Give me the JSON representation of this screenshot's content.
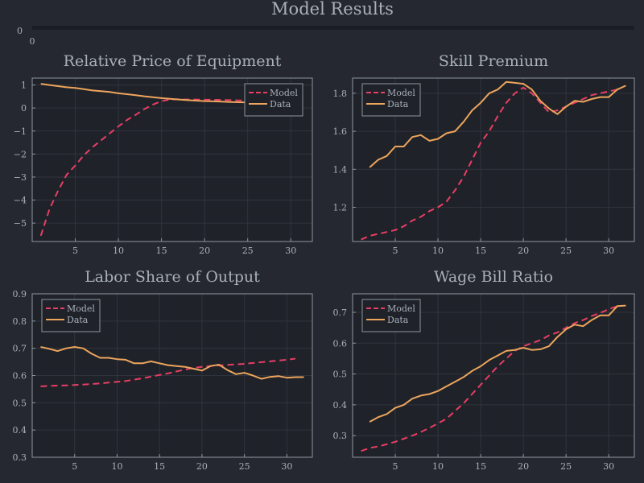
{
  "figure_title": "Model Results",
  "colors": {
    "background": "#252830",
    "plot_background": "#1f2229",
    "frame": "#8e959f",
    "grid": "#30343d",
    "text": "#a9b0ba",
    "model": "#e83e63",
    "data": "#eda55c"
  },
  "header_panel": {
    "ytick": "0",
    "xtick": "0"
  },
  "chart_data": [
    {
      "type": "line",
      "title": "Relative Price of Equipment",
      "xlabel": "",
      "ylabel": "",
      "xlim": [
        0,
        32.5
      ],
      "ylim": [
        -5.8,
        1.3
      ],
      "xticks": [
        5,
        10,
        15,
        20,
        25,
        30
      ],
      "yticks": [
        -5,
        -4,
        -3,
        -2,
        -1,
        0,
        1
      ],
      "legend_position": "top-right",
      "series": [
        {
          "name": "Model",
          "style": "dashed",
          "x": [
            1,
            2,
            3,
            4,
            5,
            6,
            7,
            8,
            9,
            10,
            11,
            12,
            13,
            14,
            15,
            16,
            17,
            18,
            19,
            20,
            21,
            22,
            23,
            24,
            25,
            26,
            27,
            28,
            29,
            30,
            31
          ],
          "values": [
            -5.55,
            -4.4,
            -3.6,
            -2.9,
            -2.5,
            -2.05,
            -1.7,
            -1.4,
            -1.1,
            -0.8,
            -0.52,
            -0.3,
            -0.05,
            0.15,
            0.3,
            0.37,
            0.38,
            0.37,
            0.37,
            0.36,
            0.36,
            0.35,
            0.34,
            0.33,
            0.33,
            0.32,
            0.31,
            0.3,
            0.3,
            0.29,
            0.28
          ]
        },
        {
          "name": "Data",
          "style": "solid",
          "x": [
            1,
            2,
            3,
            4,
            5,
            6,
            7,
            8,
            9,
            10,
            11,
            12,
            13,
            14,
            15,
            16,
            17,
            18,
            19,
            20,
            21,
            22,
            23,
            24,
            25,
            26,
            27,
            28,
            29,
            30,
            31
          ],
          "values": [
            1.05,
            1.0,
            0.95,
            0.9,
            0.87,
            0.82,
            0.76,
            0.73,
            0.7,
            0.64,
            0.6,
            0.56,
            0.51,
            0.47,
            0.43,
            0.4,
            0.37,
            0.34,
            0.32,
            0.3,
            0.29,
            0.28,
            0.26,
            0.25,
            0.24,
            0.23,
            0.22,
            0.21,
            0.2,
            0.19,
            0.18
          ]
        }
      ]
    },
    {
      "type": "line",
      "title": "Skill Premium",
      "xlabel": "",
      "ylabel": "",
      "xlim": [
        0,
        33
      ],
      "ylim": [
        1.02,
        1.88
      ],
      "xticks": [
        5,
        10,
        15,
        20,
        25,
        30
      ],
      "yticks": [
        1.2,
        1.4,
        1.6,
        1.8
      ],
      "legend_position": "top-left",
      "series": [
        {
          "name": "Model",
          "style": "dashed",
          "x": [
            1,
            2,
            3,
            4,
            5,
            6,
            7,
            8,
            9,
            10,
            11,
            12,
            13,
            14,
            15,
            16,
            17,
            18,
            19,
            20,
            21,
            22,
            23,
            24,
            25,
            26,
            27,
            28,
            29,
            30,
            31
          ],
          "values": [
            1.03,
            1.05,
            1.06,
            1.07,
            1.08,
            1.1,
            1.13,
            1.15,
            1.18,
            1.2,
            1.23,
            1.29,
            1.36,
            1.45,
            1.54,
            1.6,
            1.68,
            1.75,
            1.8,
            1.83,
            1.8,
            1.75,
            1.7,
            1.71,
            1.73,
            1.75,
            1.77,
            1.79,
            1.8,
            1.81,
            1.82
          ]
        },
        {
          "name": "Data",
          "style": "solid",
          "x": [
            2,
            3,
            4,
            5,
            6,
            7,
            8,
            9,
            10,
            11,
            12,
            13,
            14,
            15,
            16,
            17,
            18,
            19,
            20,
            21,
            22,
            23,
            24,
            25,
            26,
            27,
            28,
            29,
            30,
            31,
            32
          ],
          "values": [
            1.41,
            1.45,
            1.47,
            1.52,
            1.52,
            1.57,
            1.58,
            1.55,
            1.56,
            1.59,
            1.6,
            1.65,
            1.71,
            1.75,
            1.8,
            1.82,
            1.86,
            1.855,
            1.85,
            1.82,
            1.76,
            1.72,
            1.69,
            1.73,
            1.76,
            1.755,
            1.77,
            1.78,
            1.78,
            1.82,
            1.84
          ]
        }
      ]
    },
    {
      "type": "line",
      "title": "Labor Share of Output",
      "xlabel": "",
      "ylabel": "",
      "xlim": [
        0,
        33
      ],
      "ylim": [
        0.3,
        0.9
      ],
      "xticks": [
        5,
        10,
        15,
        20,
        25,
        30
      ],
      "yticks": [
        0.3,
        0.4,
        0.5,
        0.6,
        0.7,
        0.8,
        0.9
      ],
      "legend_position": "top-left",
      "series": [
        {
          "name": "Model",
          "style": "dashed",
          "x": [
            1,
            2,
            3,
            4,
            5,
            6,
            7,
            8,
            9,
            10,
            11,
            12,
            13,
            14,
            15,
            16,
            17,
            18,
            19,
            20,
            21,
            22,
            23,
            24,
            25,
            26,
            27,
            28,
            29,
            30,
            31
          ],
          "values": [
            0.56,
            0.562,
            0.563,
            0.564,
            0.565,
            0.567,
            0.569,
            0.571,
            0.574,
            0.577,
            0.58,
            0.585,
            0.59,
            0.596,
            0.602,
            0.608,
            0.615,
            0.622,
            0.628,
            0.632,
            0.635,
            0.637,
            0.639,
            0.641,
            0.643,
            0.646,
            0.649,
            0.652,
            0.655,
            0.658,
            0.662
          ]
        },
        {
          "name": "Data",
          "style": "solid",
          "x": [
            1,
            2,
            3,
            4,
            5,
            6,
            7,
            8,
            9,
            10,
            11,
            12,
            13,
            14,
            15,
            16,
            17,
            18,
            19,
            20,
            21,
            22,
            23,
            24,
            25,
            26,
            27,
            28,
            29,
            30,
            31,
            32
          ],
          "values": [
            0.705,
            0.698,
            0.69,
            0.7,
            0.705,
            0.7,
            0.68,
            0.665,
            0.665,
            0.66,
            0.658,
            0.645,
            0.645,
            0.652,
            0.645,
            0.638,
            0.635,
            0.632,
            0.625,
            0.618,
            0.635,
            0.64,
            0.62,
            0.605,
            0.61,
            0.6,
            0.588,
            0.595,
            0.598,
            0.592,
            0.594,
            0.594
          ]
        }
      ]
    },
    {
      "type": "line",
      "title": "Wage Bill Ratio",
      "xlabel": "",
      "ylabel": "",
      "xlim": [
        0,
        33
      ],
      "ylim": [
        0.23,
        0.76
      ],
      "xticks": [
        5,
        10,
        15,
        20,
        25,
        30
      ],
      "yticks": [
        0.3,
        0.4,
        0.5,
        0.6,
        0.7
      ],
      "legend_position": "top-left",
      "series": [
        {
          "name": "Model",
          "style": "dashed",
          "x": [
            1,
            2,
            3,
            4,
            5,
            6,
            7,
            8,
            9,
            10,
            11,
            12,
            13,
            14,
            15,
            16,
            17,
            18,
            19,
            20,
            21,
            22,
            23,
            24,
            25,
            26,
            27,
            28,
            29,
            30,
            31
          ],
          "values": [
            0.25,
            0.26,
            0.265,
            0.272,
            0.28,
            0.29,
            0.3,
            0.312,
            0.325,
            0.34,
            0.355,
            0.38,
            0.405,
            0.435,
            0.465,
            0.495,
            0.525,
            0.55,
            0.575,
            0.59,
            0.6,
            0.61,
            0.625,
            0.635,
            0.65,
            0.665,
            0.675,
            0.688,
            0.698,
            0.71,
            0.72
          ]
        },
        {
          "name": "Data",
          "style": "solid",
          "x": [
            2,
            3,
            4,
            5,
            6,
            7,
            8,
            9,
            10,
            11,
            12,
            13,
            14,
            15,
            16,
            17,
            18,
            19,
            20,
            21,
            22,
            23,
            24,
            25,
            26,
            27,
            28,
            29,
            30,
            31,
            32
          ],
          "values": [
            0.345,
            0.36,
            0.37,
            0.39,
            0.4,
            0.42,
            0.43,
            0.435,
            0.445,
            0.46,
            0.475,
            0.49,
            0.51,
            0.525,
            0.545,
            0.56,
            0.575,
            0.578,
            0.585,
            0.578,
            0.58,
            0.59,
            0.62,
            0.645,
            0.66,
            0.655,
            0.675,
            0.69,
            0.69,
            0.72,
            0.722
          ]
        }
      ]
    }
  ]
}
